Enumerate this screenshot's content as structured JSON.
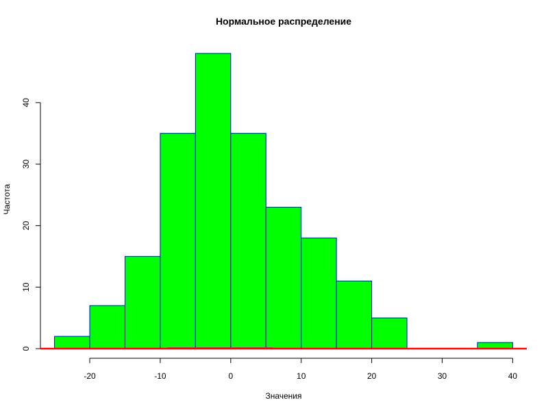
{
  "chart_data": {
    "type": "bar",
    "title": "Нормальное распределение",
    "xlabel": "Значения",
    "ylabel": "Частота",
    "bins": [
      {
        "x0": -25,
        "x1": -20,
        "count": 2
      },
      {
        "x0": -20,
        "x1": -15,
        "count": 7
      },
      {
        "x0": -15,
        "x1": -10,
        "count": 15
      },
      {
        "x0": -10,
        "x1": -5,
        "count": 35
      },
      {
        "x0": -5,
        "x1": 0,
        "count": 48
      },
      {
        "x0": 0,
        "x1": 5,
        "count": 35
      },
      {
        "x0": 5,
        "x1": 10,
        "count": 23
      },
      {
        "x0": 10,
        "x1": 15,
        "count": 18
      },
      {
        "x0": 15,
        "x1": 20,
        "count": 11
      },
      {
        "x0": 20,
        "x1": 25,
        "count": 5
      },
      {
        "x0": 25,
        "x1": 30,
        "count": 0
      },
      {
        "x0": 30,
        "x1": 35,
        "count": 0
      },
      {
        "x0": 35,
        "x1": 40,
        "count": 1
      }
    ],
    "xlim": [
      -27,
      42
    ],
    "ylim": [
      0,
      50
    ],
    "x_ticks": [
      "-20",
      "-10",
      "0",
      "10",
      "20",
      "30",
      "40"
    ],
    "y_ticks": [
      "0",
      "10",
      "20",
      "30",
      "40"
    ],
    "bar_fill": "#00ff00",
    "bar_border": "#0000ff",
    "baseline_color": "#ff0000",
    "band": {
      "x0": -9,
      "x1": 6,
      "color": "#9a3fb0"
    },
    "grid": false,
    "legend": "none"
  }
}
